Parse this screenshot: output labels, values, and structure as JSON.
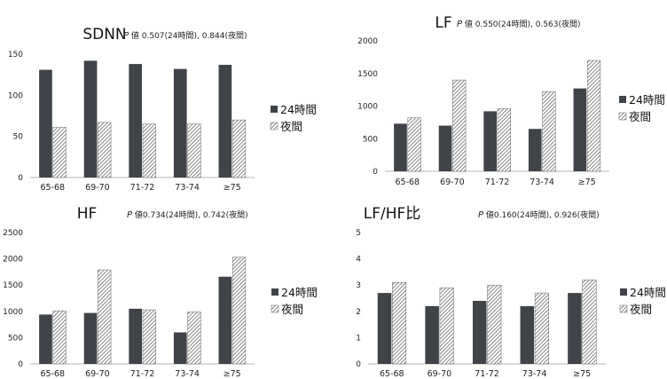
{
  "colors": {
    "series_24h": "#404448",
    "series_night_bg": "#ffffff",
    "series_night_hatch": "#555555",
    "axis": "#b5b5b5"
  },
  "chart_data": [
    {
      "id": "sdnn",
      "type": "bar",
      "title": "SDNN",
      "subtitle_p": "P",
      "subtitle": "値 0.507(24時間), 0.844(夜間)",
      "categories": [
        "65-68",
        "69-70",
        "71-72",
        "73-74",
        "≥75"
      ],
      "ylim": [
        0,
        150
      ],
      "yticks": [
        0,
        50,
        100,
        150
      ],
      "series": [
        {
          "name": "24時間",
          "values": [
            131,
            142,
            138,
            132,
            137
          ]
        },
        {
          "name": "夜間",
          "values": [
            61,
            67,
            65,
            65,
            70
          ]
        }
      ],
      "legend": "right"
    },
    {
      "id": "lf",
      "type": "bar",
      "title": "LF",
      "subtitle_p": "P",
      "subtitle": "値 0.550(24時間), 0.563(夜間)",
      "categories": [
        "65-68",
        "69-70",
        "71-72",
        "73-74",
        "≥75"
      ],
      "ylim": [
        0,
        2000
      ],
      "yticks": [
        0,
        500,
        1000,
        1500,
        2000
      ],
      "series": [
        {
          "name": "24時間",
          "values": [
            730,
            700,
            920,
            650,
            1270
          ]
        },
        {
          "name": "夜間",
          "values": [
            820,
            1400,
            960,
            1220,
            1700
          ]
        }
      ],
      "legend": "right"
    },
    {
      "id": "hf",
      "type": "bar",
      "title": "HF",
      "subtitle_p": "P",
      "subtitle": "値0.734(24時間), 0.742(夜間)",
      "categories": [
        "65-68",
        "69-70",
        "71-72",
        "73-74",
        "≥75"
      ],
      "ylim": [
        0,
        2500
      ],
      "yticks": [
        0,
        500,
        1000,
        1500,
        2000,
        2500
      ],
      "series": [
        {
          "name": "24時間",
          "values": [
            940,
            970,
            1050,
            600,
            1660
          ]
        },
        {
          "name": "夜間",
          "values": [
            1010,
            1790,
            1030,
            990,
            2030
          ]
        }
      ],
      "legend": "right"
    },
    {
      "id": "lfhf",
      "type": "bar",
      "title": "LF/HF比",
      "subtitle_p": "P",
      "subtitle": "値0.160(24時間), 0.926(夜間)",
      "categories": [
        "65-68",
        "69-70",
        "71-72",
        "73-74",
        "≥75"
      ],
      "ylim": [
        0,
        5
      ],
      "yticks": [
        0,
        1,
        2,
        3,
        4,
        5
      ],
      "series": [
        {
          "name": "24時間",
          "values": [
            2.7,
            2.2,
            2.4,
            2.2,
            2.7
          ]
        },
        {
          "name": "夜間",
          "values": [
            3.1,
            2.9,
            3.0,
            2.7,
            3.2
          ]
        }
      ],
      "legend": "right"
    }
  ]
}
